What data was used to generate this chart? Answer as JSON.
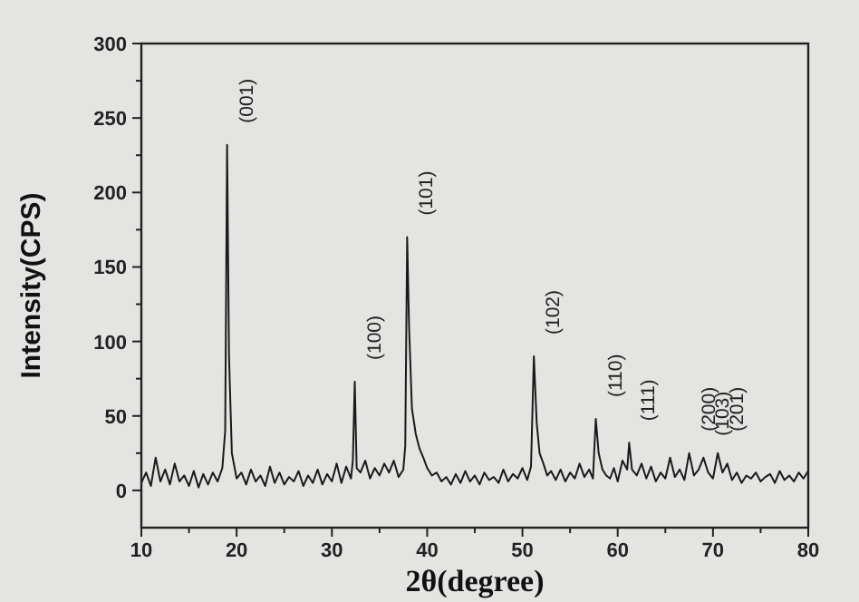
{
  "chart_data": {
    "type": "line",
    "xlabel": "2θ(degree)",
    "ylabel": "Intensity(CPS)",
    "xlim": [
      10,
      80
    ],
    "ylim": [
      -25,
      300
    ],
    "xticks": [
      10,
      20,
      30,
      40,
      50,
      60,
      70,
      80
    ],
    "yticks": [
      0,
      50,
      100,
      150,
      200,
      250,
      300
    ],
    "grid": false,
    "marker": "none",
    "line_style": "solid",
    "series": [
      {
        "color": "#1a1a1a",
        "x": [
          10,
          10.5,
          11,
          11.5,
          12,
          12.5,
          13,
          13.5,
          14,
          14.5,
          15,
          15.5,
          16,
          16.5,
          17,
          17.5,
          18,
          18.5,
          18.8,
          19,
          19.2,
          19.5,
          20,
          20.5,
          21,
          21.5,
          22,
          22.5,
          23,
          23.5,
          24,
          24.5,
          25,
          25.5,
          26,
          26.5,
          27,
          27.5,
          28,
          28.5,
          29,
          29.5,
          30,
          30.5,
          31,
          31.5,
          32,
          32.2,
          32.4,
          32.6,
          33,
          33.5,
          34,
          34.5,
          35,
          35.5,
          36,
          36.5,
          37,
          37.5,
          37.7,
          37.9,
          38.1,
          38.4,
          38.8,
          39.2,
          39.6,
          40,
          40.5,
          41,
          41.5,
          42,
          42.5,
          43,
          43.5,
          44,
          44.5,
          45,
          45.5,
          46,
          46.5,
          47,
          47.5,
          48,
          48.5,
          49,
          49.5,
          50,
          50.5,
          50.9,
          51.2,
          51.5,
          51.8,
          52.2,
          52.6,
          53,
          53.5,
          54,
          54.5,
          55,
          55.5,
          56,
          56.5,
          57,
          57.4,
          57.7,
          58,
          58.4,
          58.8,
          59.2,
          59.6,
          60,
          60.5,
          61,
          61.2,
          61.5,
          62,
          62.5,
          63,
          63.5,
          64,
          64.5,
          65,
          65.5,
          66,
          66.5,
          67,
          67.5,
          68,
          68.5,
          69,
          69.5,
          70,
          70.5,
          71,
          71.5,
          72,
          72.5,
          73,
          73.5,
          74,
          74.5,
          75,
          75.5,
          76,
          76.5,
          77,
          77.5,
          78,
          78.5,
          79,
          79.5,
          80
        ],
        "values": [
          5,
          12,
          3,
          22,
          6,
          14,
          4,
          18,
          6,
          10,
          3,
          13,
          2,
          11,
          4,
          12,
          6,
          15,
          40,
          232,
          90,
          25,
          8,
          12,
          4,
          14,
          6,
          10,
          3,
          16,
          5,
          12,
          4,
          9,
          6,
          13,
          3,
          10,
          5,
          14,
          4,
          11,
          6,
          18,
          5,
          16,
          8,
          20,
          73,
          15,
          12,
          20,
          8,
          15,
          10,
          18,
          12,
          20,
          9,
          14,
          30,
          170,
          110,
          55,
          38,
          28,
          22,
          15,
          10,
          12,
          6,
          9,
          4,
          11,
          5,
          13,
          6,
          10,
          4,
          12,
          7,
          9,
          5,
          14,
          6,
          11,
          8,
          15,
          7,
          16,
          90,
          45,
          25,
          18,
          10,
          13,
          7,
          14,
          6,
          12,
          8,
          18,
          9,
          14,
          8,
          48,
          25,
          14,
          10,
          8,
          15,
          6,
          20,
          14,
          32,
          14,
          10,
          18,
          8,
          16,
          6,
          12,
          8,
          22,
          9,
          14,
          7,
          25,
          10,
          14,
          22,
          12,
          8,
          25,
          12,
          18,
          7,
          12,
          5,
          10,
          8,
          12,
          6,
          9,
          11,
          5,
          13,
          7,
          10,
          6,
          12,
          8,
          13
        ]
      }
    ],
    "annotations": [
      {
        "text": "(001)",
        "x": 19,
        "y": 232
      },
      {
        "text": "(100)",
        "x": 32.4,
        "y": 73
      },
      {
        "text": "(101)",
        "x": 37.9,
        "y": 170
      },
      {
        "text": "(102)",
        "x": 51.2,
        "y": 90
      },
      {
        "text": "(110)",
        "x": 57.7,
        "y": 48
      },
      {
        "text": "(111)",
        "x": 61.2,
        "y": 32
      },
      {
        "text": "(200)",
        "x": 67.5,
        "y": 25
      },
      {
        "text": "(103)",
        "x": 69,
        "y": 22
      },
      {
        "text": "(201)",
        "x": 70.5,
        "y": 25
      }
    ]
  }
}
